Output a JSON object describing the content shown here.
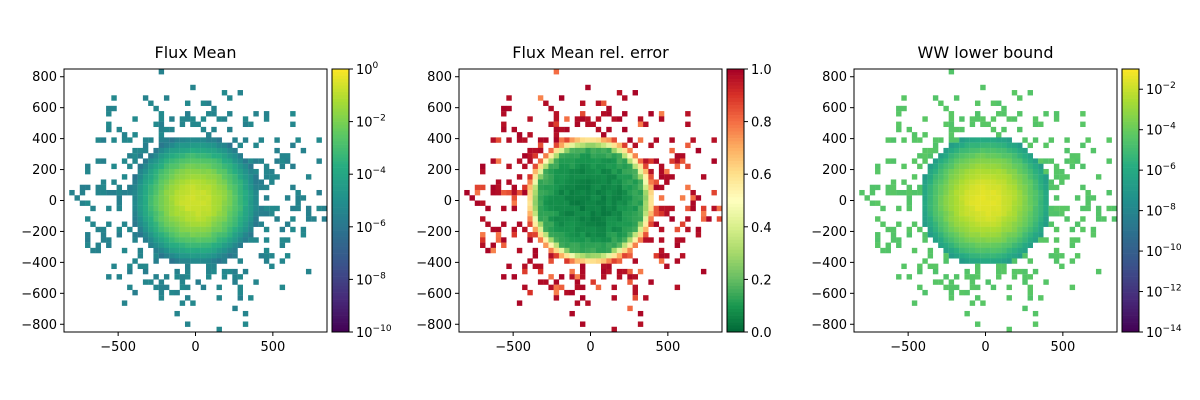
{
  "chart_data": [
    {
      "type": "heatmap",
      "title": "Flux Mean",
      "x_ticks": [
        "−500",
        "0",
        "500"
      ],
      "x_tick_values": [
        -500,
        0,
        500
      ],
      "y_ticks": [
        "800",
        "600",
        "400",
        "200",
        "0",
        "−200",
        "−400",
        "−600",
        "−800"
      ],
      "y_tick_values": [
        800,
        600,
        400,
        200,
        0,
        -200,
        -400,
        -600,
        -800
      ],
      "xlim": [
        -850,
        850
      ],
      "ylim": [
        -850,
        850
      ],
      "grid_cells": [
        50,
        50
      ],
      "core_radius": 420,
      "center_value": 0.3,
      "colormap": "viridis",
      "color_scale": "log",
      "colorbar_range": [
        1e-10,
        1
      ],
      "colorbar_ticks": [
        {
          "base": "10",
          "exp": "0",
          "value": 1
        },
        {
          "base": "10",
          "exp": "−2",
          "value": 0.01
        },
        {
          "base": "10",
          "exp": "−4",
          "value": 0.0001
        },
        {
          "base": "10",
          "exp": "−6",
          "value": 1e-06
        },
        {
          "base": "10",
          "exp": "−8",
          "value": 1e-08
        },
        {
          "base": "10",
          "exp": "−10",
          "value": 1e-10
        }
      ]
    },
    {
      "type": "heatmap",
      "title": "Flux Mean rel. error",
      "x_ticks": [
        "−500",
        "0",
        "500"
      ],
      "x_tick_values": [
        -500,
        0,
        500
      ],
      "y_ticks": [
        "800",
        "600",
        "400",
        "200",
        "0",
        "−200",
        "−400",
        "−600",
        "−800"
      ],
      "y_tick_values": [
        800,
        600,
        400,
        200,
        0,
        -200,
        -400,
        -600,
        -800
      ],
      "xlim": [
        -850,
        850
      ],
      "ylim": [
        -850,
        850
      ],
      "grid_cells": [
        50,
        50
      ],
      "core_radius": 420,
      "colormap": "RdYlGn_r",
      "color_scale": "linear",
      "colorbar_range": [
        0,
        1
      ],
      "colorbar_ticks": [
        {
          "label": "1.0",
          "value": 1.0
        },
        {
          "label": "0.8",
          "value": 0.8
        },
        {
          "label": "0.6",
          "value": 0.6
        },
        {
          "label": "0.4",
          "value": 0.4
        },
        {
          "label": "0.2",
          "value": 0.2
        },
        {
          "label": "0.0",
          "value": 0.0
        }
      ]
    },
    {
      "type": "heatmap",
      "title": "WW lower bound",
      "x_ticks": [
        "−500",
        "0",
        "500"
      ],
      "x_tick_values": [
        -500,
        0,
        500
      ],
      "y_ticks": [
        "800",
        "600",
        "400",
        "200",
        "0",
        "−200",
        "−400",
        "−600",
        "−800"
      ],
      "y_tick_values": [
        800,
        600,
        400,
        200,
        0,
        -200,
        -400,
        -600,
        -800
      ],
      "xlim": [
        -850,
        850
      ],
      "ylim": [
        -850,
        850
      ],
      "grid_cells": [
        50,
        50
      ],
      "core_radius": 420,
      "center_value": 0.05,
      "colormap": "viridis",
      "color_scale": "log",
      "colorbar_range": [
        1e-14,
        0.1
      ],
      "colorbar_ticks": [
        {
          "base": "10",
          "exp": "−2",
          "value": 0.01
        },
        {
          "base": "10",
          "exp": "−4",
          "value": 0.0001
        },
        {
          "base": "10",
          "exp": "−6",
          "value": 1e-06
        },
        {
          "base": "10",
          "exp": "−8",
          "value": 1e-08
        },
        {
          "base": "10",
          "exp": "−10",
          "value": 1e-10
        },
        {
          "base": "10",
          "exp": "−12",
          "value": 1e-12
        },
        {
          "base": "10",
          "exp": "−14",
          "value": 1e-14
        }
      ]
    }
  ]
}
